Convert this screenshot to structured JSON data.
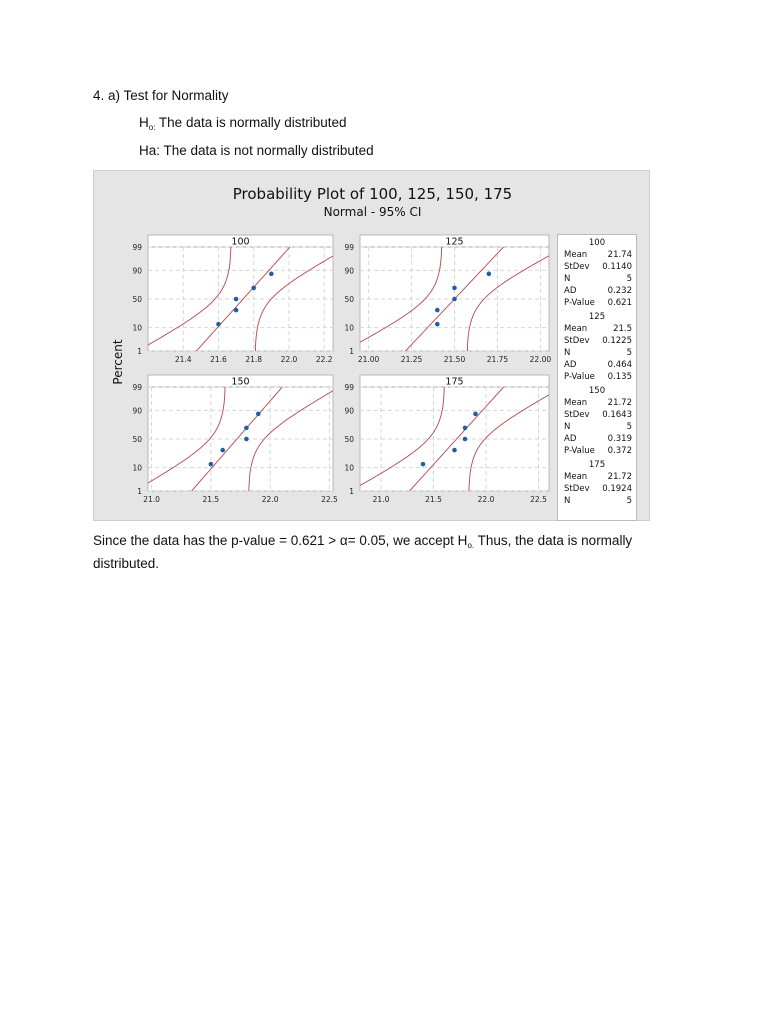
{
  "document": {
    "heading": "4. a) Test for Normality",
    "h0_symbol": "H",
    "h0_sub": "o:",
    "h0_text": " The data is normally distributed",
    "ha_text": "Ha: The data is not normally distributed",
    "conclusion_part1": "Since the data has the p-value = 0.621 > α= 0.05, we accept H",
    "conclusion_sub": "o.",
    "conclusion_part2": " Thus, the data is normally distributed."
  },
  "chart_data": {
    "type": "scatter",
    "title": "Probability Plot of 100, 125, 150, 175",
    "subtitle": "Normal - 95% CI",
    "ylabel": "Percent",
    "y_ticks": [
      "1",
      "10",
      "50",
      "90",
      "99"
    ],
    "panels": [
      {
        "name": "100",
        "x_ticks": [
          "21.4",
          "21.6",
          "21.8",
          "22.0",
          "22.2"
        ],
        "xlim": [
          21.2,
          22.25
        ],
        "points": [
          {
            "x": 21.6,
            "y": 13
          },
          {
            "x": 21.7,
            "y": 31
          },
          {
            "x": 21.7,
            "y": 50
          },
          {
            "x": 21.8,
            "y": 69
          },
          {
            "x": 21.9,
            "y": 87
          }
        ],
        "stats": {
          "Mean": "21.74",
          "StDev": "0.1140",
          "N": "5",
          "AD": "0.232",
          "P-Value": "0.621"
        }
      },
      {
        "name": "125",
        "x_ticks": [
          "21.00",
          "21.25",
          "21.50",
          "21.75",
          "22.00"
        ],
        "xlim": [
          20.95,
          22.05
        ],
        "points": [
          {
            "x": 21.4,
            "y": 13
          },
          {
            "x": 21.4,
            "y": 31
          },
          {
            "x": 21.5,
            "y": 50
          },
          {
            "x": 21.5,
            "y": 69
          },
          {
            "x": 21.7,
            "y": 87
          }
        ],
        "stats": {
          "Mean": "21.5",
          "StDev": "0.1225",
          "N": "5",
          "AD": "0.464",
          "P-Value": "0.135"
        }
      },
      {
        "name": "150",
        "x_ticks": [
          "21.0",
          "21.5",
          "22.0",
          "22.5"
        ],
        "xlim": [
          20.97,
          22.53
        ],
        "points": [
          {
            "x": 21.5,
            "y": 13
          },
          {
            "x": 21.6,
            "y": 31
          },
          {
            "x": 21.8,
            "y": 50
          },
          {
            "x": 21.8,
            "y": 69
          },
          {
            "x": 21.9,
            "y": 87
          }
        ],
        "stats": {
          "Mean": "21.72",
          "StDev": "0.1643",
          "N": "5",
          "AD": "0.319",
          "P-Value": "0.372"
        }
      },
      {
        "name": "175",
        "x_ticks": [
          "21.0",
          "21.5",
          "22.0",
          "22.5"
        ],
        "xlim": [
          20.8,
          22.6
        ],
        "points": [
          {
            "x": 21.4,
            "y": 13
          },
          {
            "x": 21.7,
            "y": 31
          },
          {
            "x": 21.8,
            "y": 50
          },
          {
            "x": 21.8,
            "y": 69
          },
          {
            "x": 21.9,
            "y": 87
          }
        ],
        "stats": {
          "Mean": "21.72",
          "StDev": "0.1924",
          "N": "5"
        }
      }
    ],
    "legend_position": "right",
    "grid": true,
    "colors": {
      "points": "#1f5fa8",
      "fit_line": "#b5474b",
      "ci_lines": "#b5474b"
    }
  }
}
